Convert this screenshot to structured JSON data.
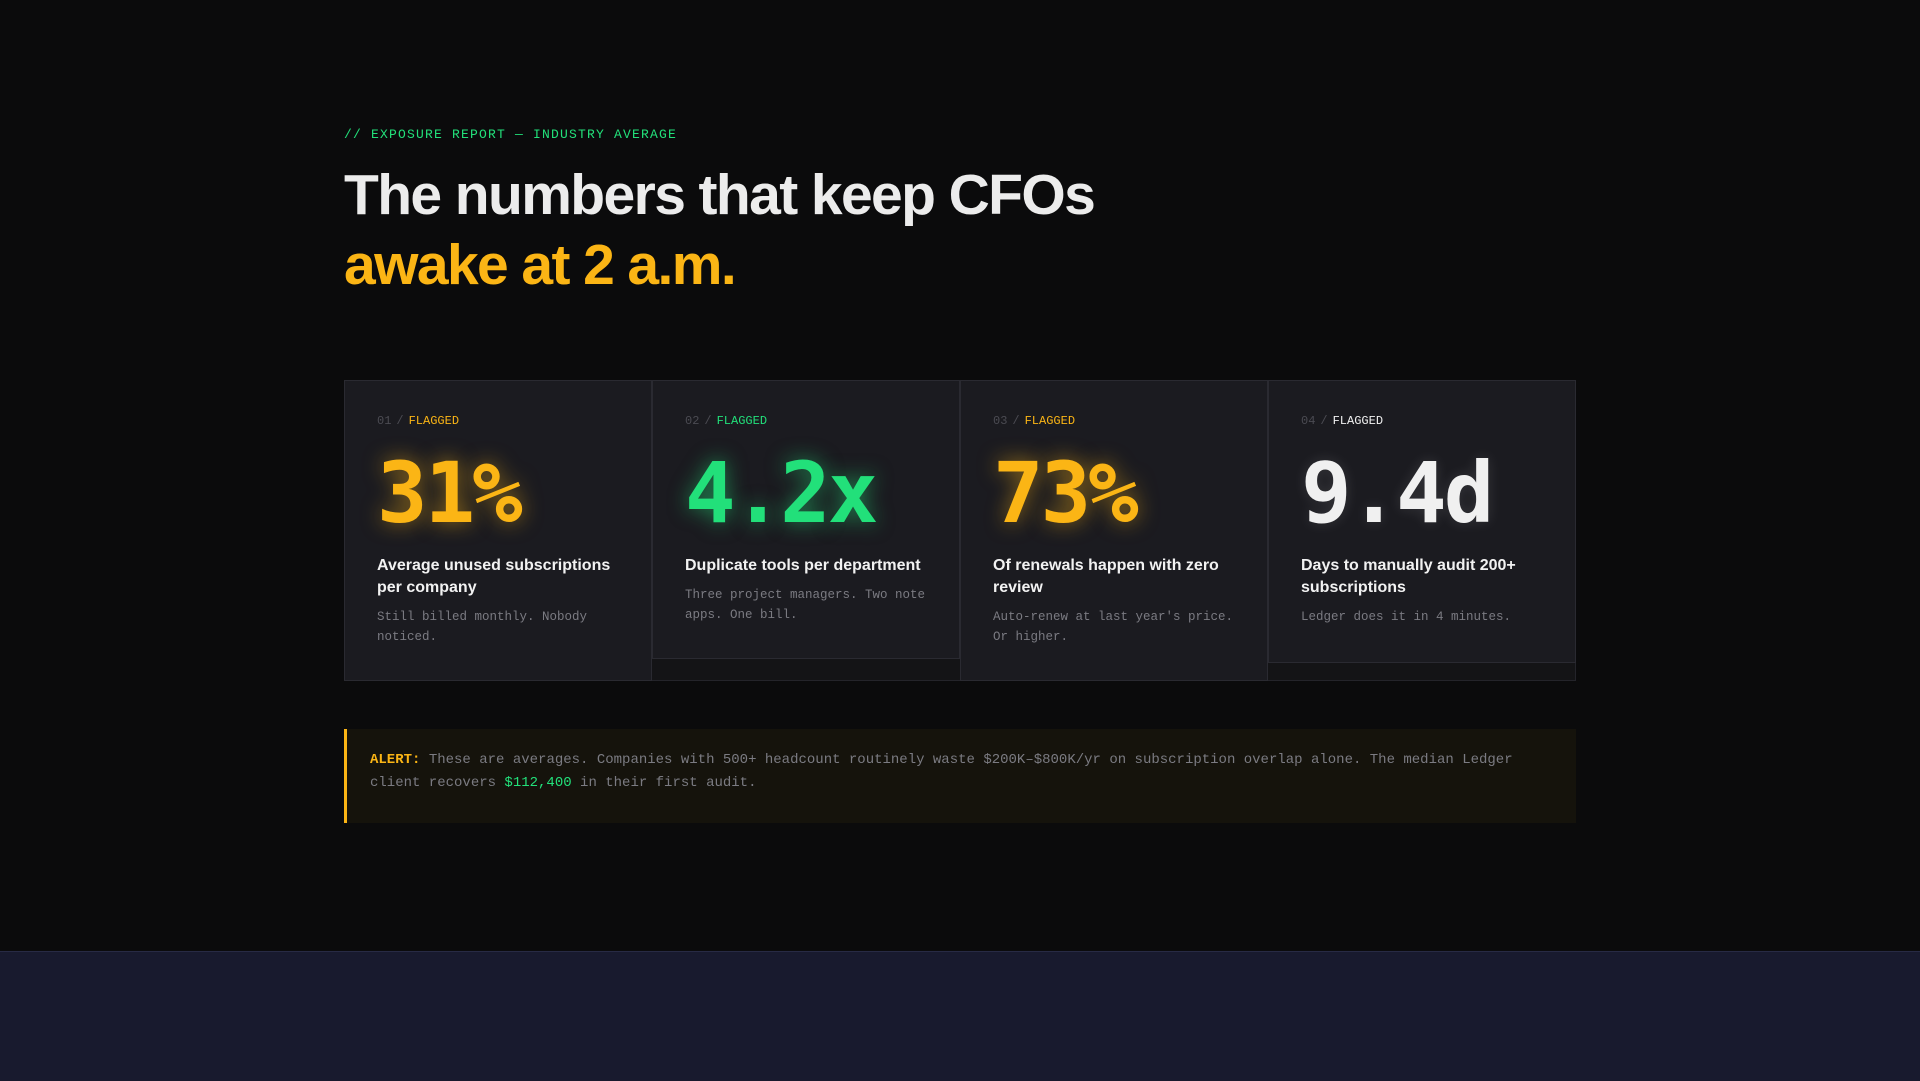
{
  "header": {
    "eyebrow": "// EXPOSURE REPORT — INDUSTRY AVERAGE",
    "headline_line1": "The numbers that keep CFOs",
    "headline_line2": "awake at 2 a.m."
  },
  "cards": [
    {
      "index": "01",
      "separator": "/",
      "status": "FLAGGED",
      "value": "31%",
      "title": "Average unused subscriptions per company",
      "note": "Still billed monthly. Nobody noticed.",
      "accent": "#fbb515"
    },
    {
      "index": "02",
      "separator": "/",
      "status": "FLAGGED",
      "value": "4.2x",
      "title": "Duplicate tools per department",
      "note": "Three project managers. Two note apps. One bill.",
      "accent": "#22e07a"
    },
    {
      "index": "03",
      "separator": "/",
      "status": "FLAGGED",
      "value": "73%",
      "title": "Of renewals happen with zero review",
      "note": "Auto-renew at last year's price. Or higher.",
      "accent": "#fbb515"
    },
    {
      "index": "04",
      "separator": "/",
      "status": "FLAGGED",
      "value": "9.4d",
      "title": "Days to manually audit 200+ subscriptions",
      "note": "Ledger does it in 4 minutes.",
      "accent": "#f0f0f0"
    }
  ],
  "alert": {
    "label": "ALERT:",
    "text_before": " These are averages. Companies with 500+ headcount routinely waste $200K–$800K/yr on subscription overlap alone. The median Ledger client recovers ",
    "amount": "$112,400",
    "text_after": " in their first audit."
  },
  "colors": {
    "background": "#0b0b0c",
    "amber": "#fbb515",
    "green": "#22e07a",
    "footer": "#181a2e"
  }
}
